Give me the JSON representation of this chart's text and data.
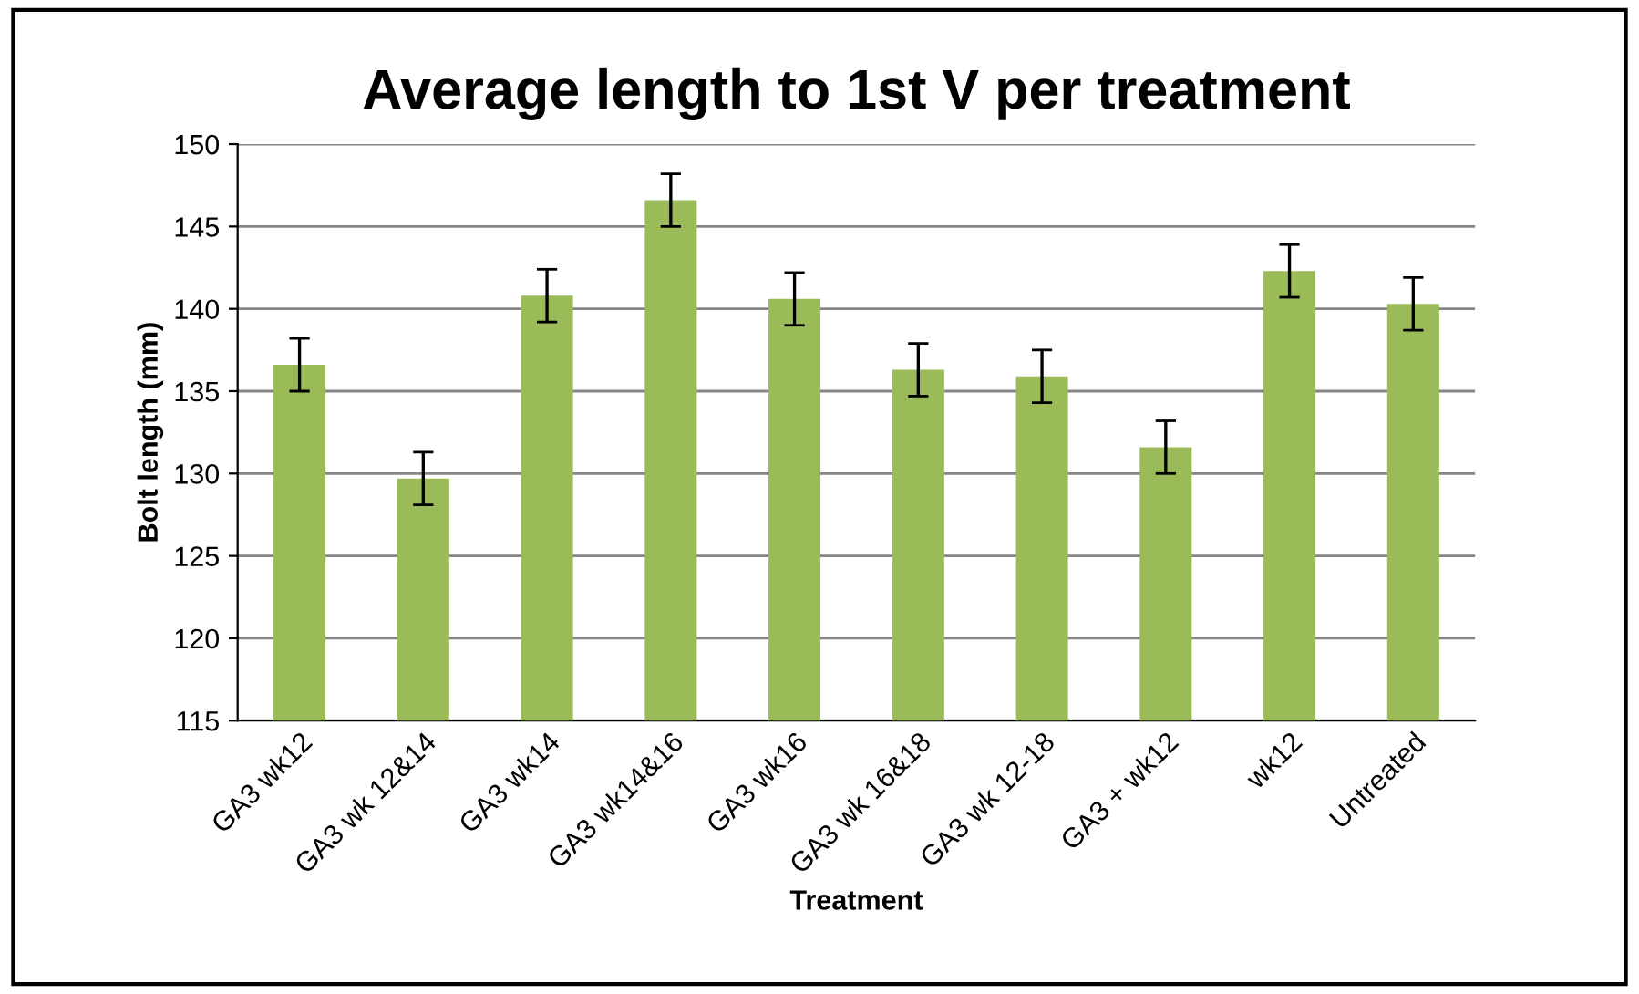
{
  "chart_data": {
    "type": "bar",
    "title": "Average length to 1st V per treatment",
    "xlabel": "Treatment",
    "ylabel": "Bolt length (mm)",
    "categories": [
      "GA3 wk12",
      "GA3 wk 12&14",
      "GA3 wk14",
      "GA3 wk14&16",
      "GA3 wk16",
      "GA3 wk 16&18",
      "GA3 wk 12-18",
      "GA3 + wk12",
      "wk12",
      "Untreated"
    ],
    "values": [
      136.6,
      129.7,
      140.8,
      146.6,
      140.6,
      136.3,
      135.9,
      131.6,
      142.3,
      140.3
    ],
    "errors": [
      1.6,
      1.6,
      1.6,
      1.6,
      1.6,
      1.6,
      1.6,
      1.6,
      1.6,
      1.6
    ],
    "color": "#9bbb59",
    "ylim": [
      115,
      150
    ],
    "yticks": [
      115,
      120,
      125,
      130,
      135,
      140,
      145,
      150
    ],
    "grid": "y",
    "legend": false
  }
}
